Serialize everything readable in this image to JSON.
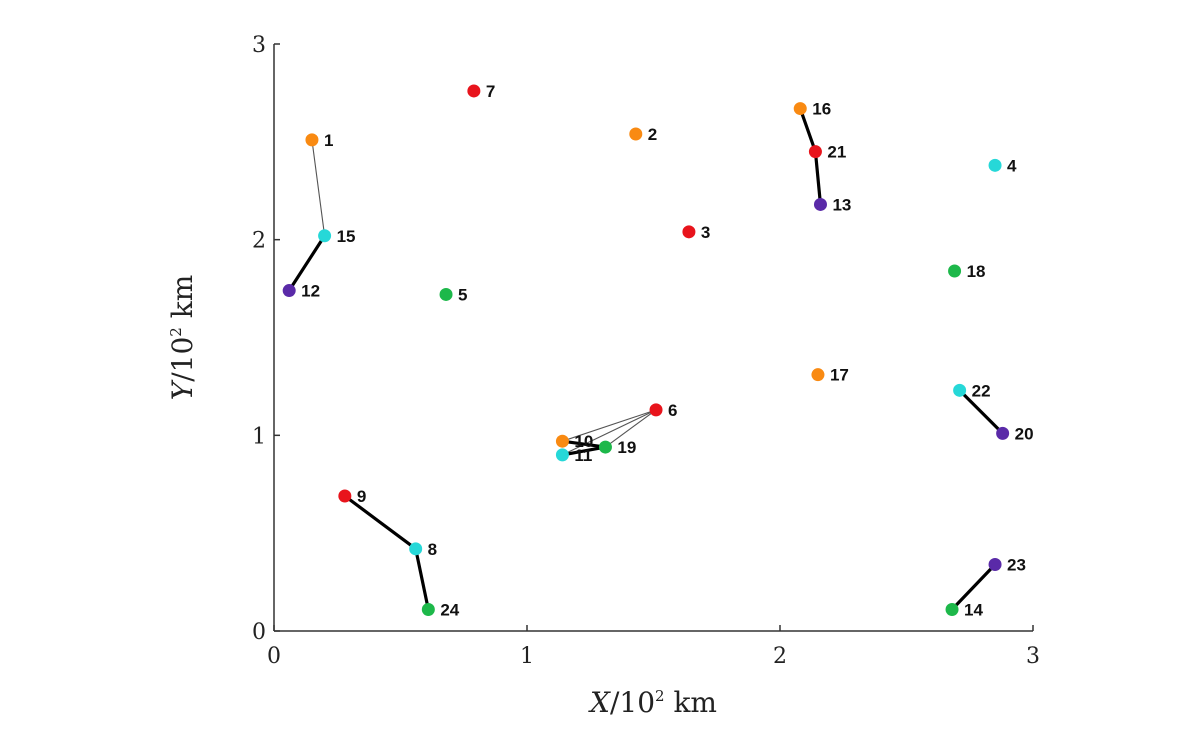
{
  "chart_data": {
    "type": "scatter",
    "title": "",
    "xlabel": {
      "var": "X",
      "base": "/10",
      "exp": "2",
      "unit": " km"
    },
    "ylabel": {
      "var": "Y",
      "base": "/10",
      "exp": "2",
      "unit": " km"
    },
    "xlim": [
      0,
      3
    ],
    "ylim": [
      0,
      3
    ],
    "xticks": [
      {
        "value": 0,
        "label": "0"
      },
      {
        "value": 1,
        "label": "1"
      },
      {
        "value": 2,
        "label": "2"
      },
      {
        "value": 3,
        "label": "3"
      }
    ],
    "yticks": [
      {
        "value": 0,
        "label": "0"
      },
      {
        "value": 1,
        "label": "1"
      },
      {
        "value": 2,
        "label": "2"
      },
      {
        "value": 3,
        "label": "3"
      }
    ],
    "grid": false,
    "colors": {
      "red": "#e8141c",
      "orange": "#f98a12",
      "cyan": "#26d8d8",
      "green": "#1db84a",
      "purple": "#5a2aa8",
      "line": "#000000"
    },
    "points": [
      {
        "id": "1",
        "x": 0.15,
        "y": 2.51,
        "color": "orange"
      },
      {
        "id": "2",
        "x": 1.43,
        "y": 2.54,
        "color": "orange"
      },
      {
        "id": "3",
        "x": 1.64,
        "y": 2.04,
        "color": "red"
      },
      {
        "id": "4",
        "x": 2.85,
        "y": 2.38,
        "color": "cyan"
      },
      {
        "id": "5",
        "x": 0.68,
        "y": 1.72,
        "color": "green"
      },
      {
        "id": "6",
        "x": 1.51,
        "y": 1.13,
        "color": "red"
      },
      {
        "id": "7",
        "x": 0.79,
        "y": 2.76,
        "color": "red"
      },
      {
        "id": "8",
        "x": 0.56,
        "y": 0.42,
        "color": "cyan"
      },
      {
        "id": "9",
        "x": 0.28,
        "y": 0.69,
        "color": "red"
      },
      {
        "id": "10",
        "x": 1.14,
        "y": 0.97,
        "color": "orange"
      },
      {
        "id": "11",
        "x": 1.14,
        "y": 0.9,
        "color": "cyan"
      },
      {
        "id": "12",
        "x": 0.06,
        "y": 1.74,
        "color": "purple"
      },
      {
        "id": "13",
        "x": 2.16,
        "y": 2.18,
        "color": "purple"
      },
      {
        "id": "14",
        "x": 2.68,
        "y": 0.11,
        "color": "green"
      },
      {
        "id": "15",
        "x": 0.2,
        "y": 2.02,
        "color": "cyan"
      },
      {
        "id": "16",
        "x": 2.08,
        "y": 2.67,
        "color": "orange"
      },
      {
        "id": "17",
        "x": 2.15,
        "y": 1.31,
        "color": "orange"
      },
      {
        "id": "18",
        "x": 2.69,
        "y": 1.84,
        "color": "green"
      },
      {
        "id": "19",
        "x": 1.31,
        "y": 0.94,
        "color": "green"
      },
      {
        "id": "20",
        "x": 2.88,
        "y": 1.01,
        "color": "purple"
      },
      {
        "id": "21",
        "x": 2.14,
        "y": 2.45,
        "color": "red"
      },
      {
        "id": "22",
        "x": 2.71,
        "y": 1.23,
        "color": "cyan"
      },
      {
        "id": "23",
        "x": 2.85,
        "y": 0.34,
        "color": "purple"
      },
      {
        "id": "24",
        "x": 0.61,
        "y": 0.11,
        "color": "green"
      }
    ],
    "links": [
      {
        "from": "1",
        "to": "15",
        "weight": "thin"
      },
      {
        "from": "15",
        "to": "12",
        "weight": "bold"
      },
      {
        "from": "16",
        "to": "21",
        "weight": "bold"
      },
      {
        "from": "21",
        "to": "13",
        "weight": "bold"
      },
      {
        "from": "9",
        "to": "8",
        "weight": "bold"
      },
      {
        "from": "8",
        "to": "24",
        "weight": "bold"
      },
      {
        "from": "22",
        "to": "20",
        "weight": "bold"
      },
      {
        "from": "14",
        "to": "23",
        "weight": "bold"
      },
      {
        "from": "6",
        "to": "10",
        "weight": "thin"
      },
      {
        "from": "6",
        "to": "11",
        "weight": "thin"
      },
      {
        "from": "6",
        "to": "19",
        "weight": "thin"
      },
      {
        "from": "10",
        "to": "19",
        "weight": "bold"
      },
      {
        "from": "11",
        "to": "19",
        "weight": "bold"
      }
    ]
  }
}
